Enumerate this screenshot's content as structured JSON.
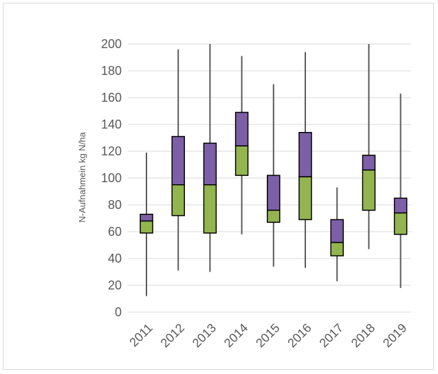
{
  "chart_data": {
    "type": "boxplot",
    "title": "",
    "xlabel": "",
    "ylabel": "N-Aufnahmein kg N/ha",
    "ylim": [
      0,
      200
    ],
    "yticks": [
      0,
      20,
      40,
      60,
      80,
      100,
      120,
      140,
      160,
      180,
      200
    ],
    "grid": true,
    "categories": [
      "2011",
      "2012",
      "2013",
      "2014",
      "2015",
      "2016",
      "2017",
      "2018",
      "2019"
    ],
    "boxes": [
      {
        "year": "2011",
        "min": 12,
        "q1": 59,
        "median": 68,
        "q3": 73,
        "max": 119
      },
      {
        "year": "2012",
        "min": 31,
        "q1": 72,
        "median": 95,
        "q3": 131,
        "max": 196
      },
      {
        "year": "2013",
        "min": 30,
        "q1": 59,
        "median": 95,
        "q3": 126,
        "max": 200
      },
      {
        "year": "2014",
        "min": 58,
        "q1": 102,
        "median": 124,
        "q3": 149,
        "max": 191
      },
      {
        "year": "2015",
        "min": 34,
        "q1": 67,
        "median": 76,
        "q3": 102,
        "max": 170
      },
      {
        "year": "2016",
        "min": 33,
        "q1": 69,
        "median": 101,
        "q3": 134,
        "max": 194
      },
      {
        "year": "2017",
        "min": 23,
        "q1": 42,
        "median": 52,
        "q3": 69,
        "max": 93
      },
      {
        "year": "2018",
        "min": 47,
        "q1": 76,
        "median": 106,
        "q3": 117,
        "max": 200
      },
      {
        "year": "2019",
        "min": 18,
        "q1": 58,
        "median": 74,
        "q3": 85,
        "max": 163
      }
    ],
    "colors": {
      "lower_box": "#92b550",
      "upper_box": "#7c5fa6",
      "whisker": "#595959",
      "box_outline": "#000000",
      "grid": "#d9d9d9"
    }
  }
}
